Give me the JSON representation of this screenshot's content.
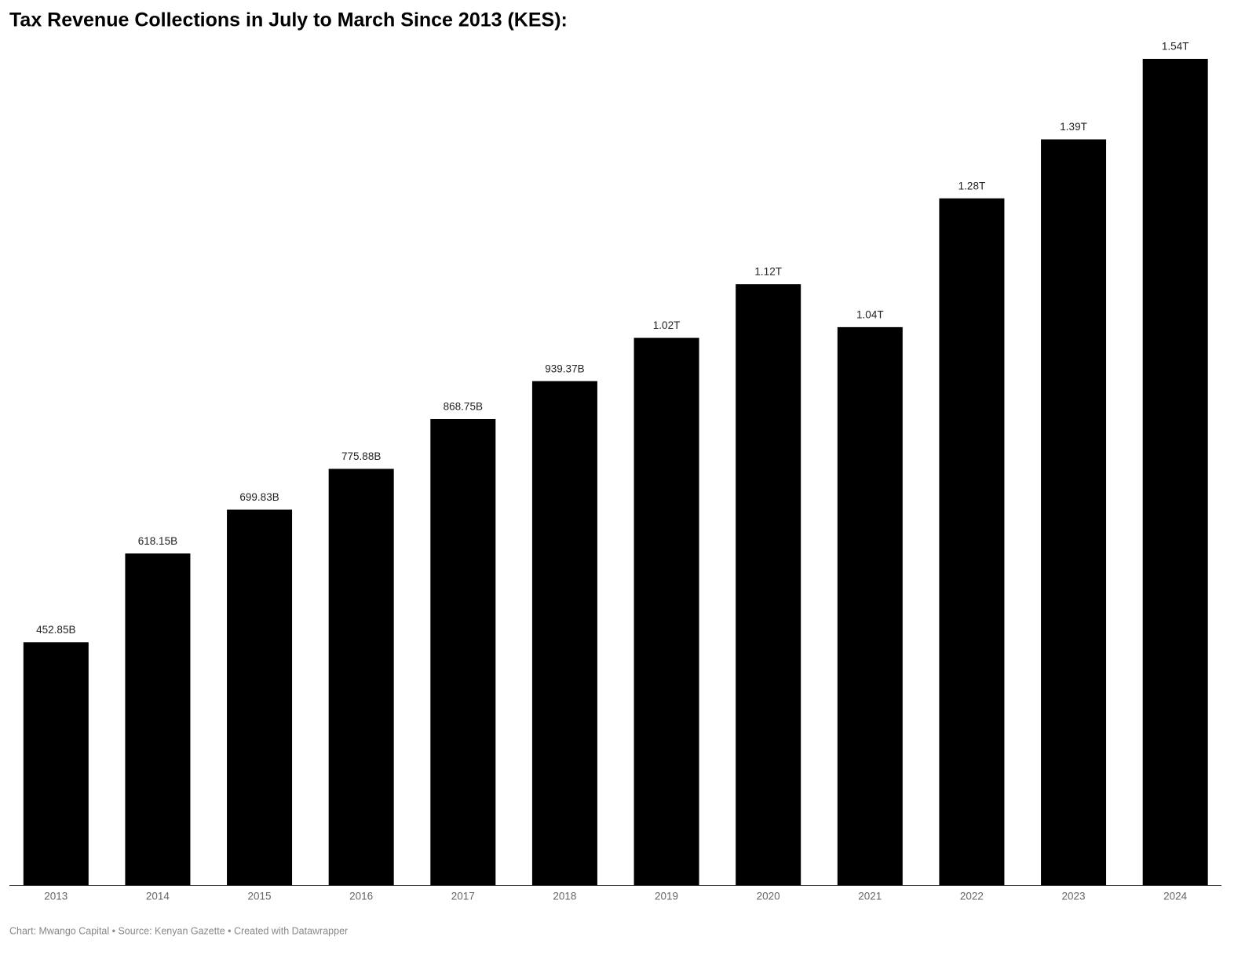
{
  "chart_data": {
    "type": "bar",
    "title": "Tax Revenue Collections in July to March Since 2013 (KES):",
    "categories": [
      "2013",
      "2014",
      "2015",
      "2016",
      "2017",
      "2018",
      "2019",
      "2020",
      "2021",
      "2022",
      "2023",
      "2024"
    ],
    "values": [
      452.85,
      618.15,
      699.83,
      775.88,
      868.75,
      939.37,
      1020,
      1120,
      1040,
      1280,
      1390,
      1540
    ],
    "value_labels": [
      "452.85B",
      "618.15B",
      "699.83B",
      "775.88B",
      "868.75B",
      "939.37B",
      "1.02T",
      "1.12T",
      "1.04T",
      "1.28T",
      "1.39T",
      "1.54T"
    ],
    "color": "#000000",
    "footer": "Chart: Mwango Capital • Source: Kenyan Gazette • Created with Datawrapper"
  }
}
